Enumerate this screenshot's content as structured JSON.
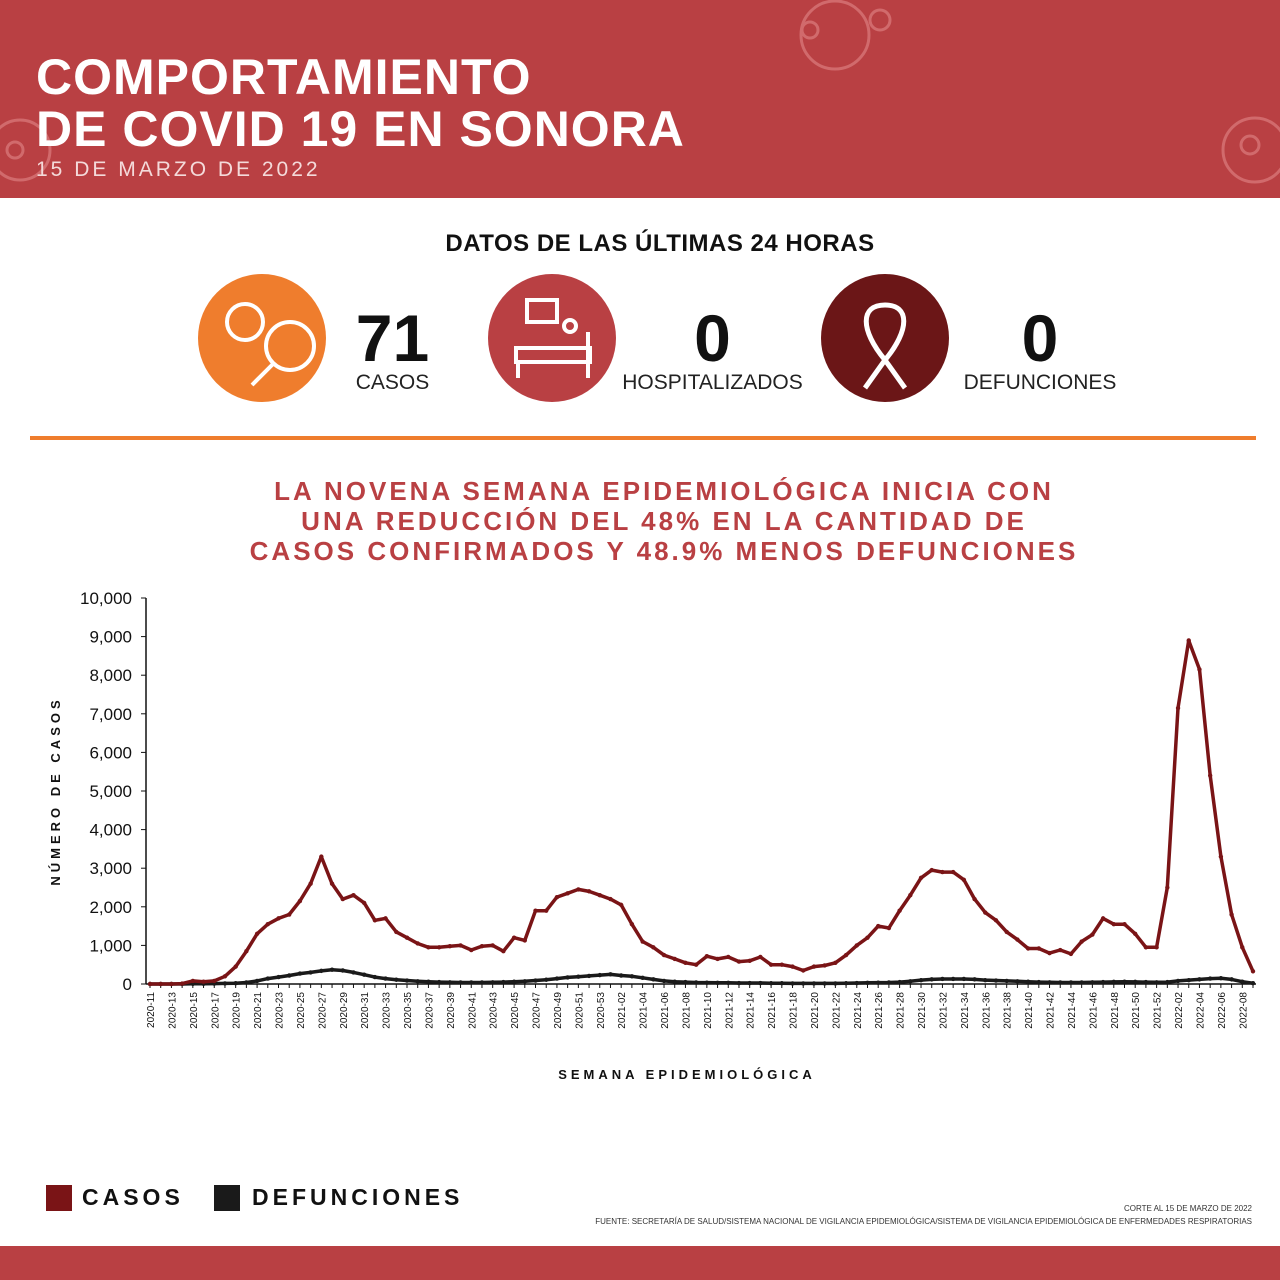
{
  "header": {
    "title": [
      "COMPORTAMIENTO",
      "DE COVID 19 EN SONORA"
    ],
    "date": "15 DE MARZO DE 2022"
  },
  "section_title": "DATOS DE LAS ÚLTIMAS 24 HORAS",
  "stats": [
    {
      "value": 71,
      "label": "CASOS"
    },
    {
      "value": 0,
      "label": "HOSPITALIZADOS"
    },
    {
      "value": 0,
      "label": "DEFUNCIONES"
    }
  ],
  "headline": [
    "LA NOVENA SEMANA EPIDEMIOLÓGICA INICIA CON",
    "UNA REDUCCIÓN DEL 48% EN LA CANTIDAD DE",
    "CASOS CONFIRMADOS Y 48.9% MENOS DEFUNCIONES"
  ],
  "chart_data": {
    "type": "line",
    "xlabel": "SEMANA EPIDEMIOLÓGICA",
    "ylabel": "NÚMERO DE CASOS",
    "categories": [
      "2020-11",
      null,
      "2020-13",
      null,
      "2020-15",
      null,
      "2020-17",
      null,
      "2020-19",
      null,
      "2020-21",
      null,
      "2020-23",
      null,
      "2020-25",
      null,
      "2020-27",
      null,
      "2020-29",
      null,
      "2020-31",
      null,
      "2020-33",
      null,
      "2020-35",
      null,
      "2020-37",
      null,
      "2020-39",
      null,
      "2020-41",
      null,
      "2020-43",
      null,
      "2020-45",
      null,
      "2020-47",
      null,
      "2020-49",
      null,
      "2020-51",
      null,
      "2020-53",
      null,
      "2021-02",
      null,
      "2021-04",
      null,
      "2021-06",
      null,
      "2021-08",
      null,
      "2021-10",
      null,
      "2021-12",
      null,
      "2021-14",
      null,
      "2021-16",
      null,
      "2021-18",
      null,
      "2021-20",
      null,
      "2021-22",
      null,
      "2021-24",
      null,
      "2021-26",
      null,
      "2021-28",
      null,
      "2021-30",
      null,
      "2021-32",
      null,
      "2021-34",
      null,
      "2021-36",
      null,
      "2021-38",
      null,
      "2021-40",
      null,
      "2021-42",
      null,
      "2021-44",
      null,
      "2021-46",
      null,
      "2021-48",
      null,
      "2021-50",
      null,
      "2021-52",
      null,
      "2022-02",
      null,
      "2022-04",
      null,
      "2022-06",
      null,
      "2022-08",
      null
    ],
    "series": [
      {
        "name": "CASOS",
        "color": "#7a1416",
        "values": [
          0,
          0,
          0,
          10,
          80,
          60,
          80,
          200,
          450,
          850,
          1300,
          1550,
          1700,
          1800,
          2150,
          2600,
          3300,
          2600,
          2200,
          2300,
          2100,
          1650,
          1700,
          1350,
          1200,
          1050,
          950,
          950,
          980,
          1000,
          880,
          980,
          1000,
          850,
          1200,
          1130,
          1900,
          1900,
          2250,
          2350,
          2450,
          2400,
          2300,
          2200,
          2050,
          1550,
          1100,
          950,
          750,
          650,
          550,
          500,
          720,
          650,
          700,
          580,
          600,
          700,
          500,
          500,
          450,
          350,
          450,
          480,
          550,
          750,
          1000,
          1200,
          1500,
          1450,
          1900,
          2300,
          2750,
          2950,
          2900,
          2900,
          2700,
          2200,
          1850,
          1650,
          1350,
          1150,
          920,
          920,
          800,
          880,
          780,
          1100,
          1280,
          1700,
          1550,
          1550,
          1300,
          950,
          950,
          2500,
          7150,
          8900,
          8150,
          5400,
          3300,
          1800,
          950,
          330
        ]
      },
      {
        "name": "DEFUNCIONES",
        "color": "#1a1a1a",
        "values": [
          0,
          0,
          0,
          0,
          5,
          5,
          10,
          15,
          20,
          40,
          80,
          140,
          180,
          220,
          270,
          300,
          340,
          370,
          350,
          300,
          240,
          180,
          140,
          110,
          90,
          70,
          60,
          50,
          45,
          40,
          40,
          40,
          45,
          50,
          60,
          70,
          90,
          110,
          140,
          170,
          190,
          210,
          230,
          250,
          220,
          200,
          160,
          120,
          80,
          60,
          50,
          40,
          35,
          30,
          30,
          25,
          25,
          25,
          20,
          20,
          15,
          15,
          15,
          15,
          15,
          20,
          25,
          30,
          35,
          40,
          50,
          70,
          100,
          120,
          130,
          130,
          130,
          120,
          100,
          90,
          80,
          70,
          60,
          50,
          45,
          40,
          40,
          40,
          45,
          50,
          55,
          60,
          55,
          50,
          45,
          50,
          80,
          100,
          120,
          140,
          150,
          120,
          60,
          20
        ]
      }
    ],
    "ylim": [
      0,
      10000
    ],
    "yticks": [
      0,
      {
        "value": 1000,
        "label": "1,000"
      },
      {
        "value": 2000,
        "label": "2,000"
      },
      {
        "value": 3000,
        "label": "3,000"
      },
      {
        "value": 4000,
        "label": "4,000"
      },
      {
        "value": 5000,
        "label": "5,000"
      },
      {
        "value": 6000,
        "label": "6,000"
      },
      {
        "value": 7000,
        "label": "7,000"
      },
      {
        "value": 8000,
        "label": "8,000"
      },
      {
        "value": 9000,
        "label": "9,000"
      },
      {
        "value": 10000,
        "label": "10,000"
      }
    ],
    "grid": false,
    "legend": "bottom-left"
  },
  "footer": {
    "cutoff": "CORTE AL 15 DE MARZO DE 2022",
    "source": "FUENTE: SECRETARÍA DE SALUD/SISTEMA NACIONAL DE VIGILANCIA EPIDEMIOLÓGICA/SISTEMA DE VIGILANCIA EPIDEMIOLÓGICA DE ENFERMEDADES RESPIRATORIAS"
  }
}
